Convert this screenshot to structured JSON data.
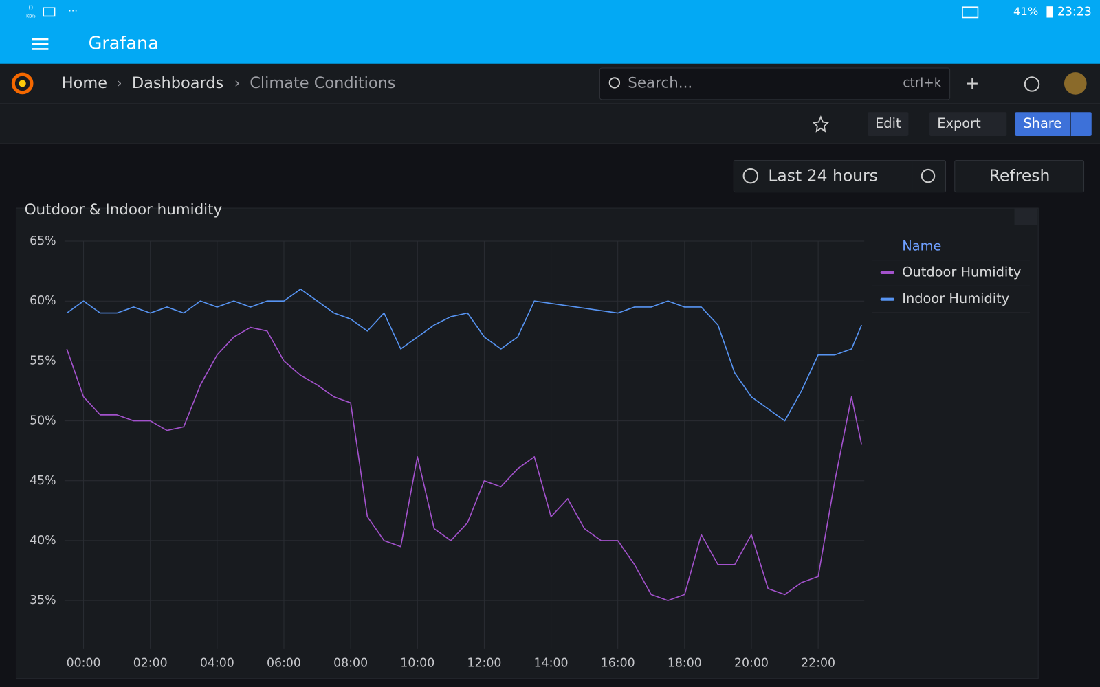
{
  "status": {
    "kbs": "0",
    "kbs_unit": "KB/s",
    "battery": "41%",
    "time": "23:23"
  },
  "app_bar": {
    "title": "Grafana"
  },
  "breadcrumb": [
    "Home",
    "Dashboards",
    "Climate Conditions"
  ],
  "search": {
    "placeholder": "Search...",
    "shortcut": "ctrl+k"
  },
  "toolbar": {
    "edit": "Edit",
    "export": "Export",
    "share": "Share"
  },
  "time_picker": {
    "range": "Last 24 hours",
    "refresh": "Refresh"
  },
  "chart_data": {
    "type": "line",
    "title": "Outdoor & Indoor humidity",
    "legend_header": "Name",
    "legend": "right",
    "grid": true,
    "x": [
      -0.5,
      0,
      0.5,
      1,
      1.5,
      2,
      2.5,
      3,
      3.5,
      4,
      4.5,
      5,
      5.5,
      6,
      6.5,
      7,
      7.5,
      8,
      8.5,
      9,
      9.5,
      10,
      10.5,
      11,
      11.5,
      12,
      12.5,
      13,
      13.5,
      14,
      14.5,
      15,
      15.5,
      16,
      16.5,
      17,
      17.5,
      18,
      18.5,
      19,
      19.5,
      20,
      20.5,
      21,
      21.5,
      22,
      22.5,
      23,
      23.3
    ],
    "xlim": [
      -0.57,
      23.38
    ],
    "xticks": [
      {
        "value": 0,
        "label": "00:00"
      },
      {
        "value": 2,
        "label": "02:00"
      },
      {
        "value": 4,
        "label": "04:00"
      },
      {
        "value": 6,
        "label": "06:00"
      },
      {
        "value": 8,
        "label": "08:00"
      },
      {
        "value": 10,
        "label": "10:00"
      },
      {
        "value": 12,
        "label": "12:00"
      },
      {
        "value": 14,
        "label": "14:00"
      },
      {
        "value": 16,
        "label": "16:00"
      },
      {
        "value": 18,
        "label": "18:00"
      },
      {
        "value": 20,
        "label": "20:00"
      },
      {
        "value": 22,
        "label": "22:00"
      }
    ],
    "ylim": [
      31,
      65
    ],
    "yticks": [
      {
        "value": 35,
        "label": "35%"
      },
      {
        "value": 40,
        "label": "40%"
      },
      {
        "value": 45,
        "label": "45%"
      },
      {
        "value": 50,
        "label": "50%"
      },
      {
        "value": 55,
        "label": "55%"
      },
      {
        "value": 60,
        "label": "60%"
      },
      {
        "value": 65,
        "label": "65%"
      }
    ],
    "series": [
      {
        "name": "Outdoor Humidity",
        "color": "#a352cc",
        "values": [
          56,
          52,
          50.5,
          50.5,
          50,
          50,
          49.2,
          49.5,
          53,
          55.5,
          57,
          57.8,
          57.5,
          55,
          53.8,
          53,
          52,
          51.5,
          42,
          40,
          39.5,
          47,
          41,
          40,
          41.5,
          45,
          44.5,
          46,
          47,
          42,
          43.5,
          41,
          40,
          40,
          38,
          35.5,
          35,
          35.5,
          40.5,
          38,
          38,
          40.5,
          36,
          35.5,
          36.5,
          37,
          45,
          52,
          48
        ]
      },
      {
        "name": "Indoor Humidity",
        "color": "#5794f2",
        "values": [
          59,
          60,
          59,
          59,
          59.5,
          59,
          59.5,
          59,
          60,
          59.5,
          60,
          59.5,
          60,
          60,
          61,
          60,
          59,
          58.5,
          57.5,
          59,
          56,
          57,
          58,
          58.7,
          59,
          57,
          56,
          57,
          60,
          59.8,
          59.6,
          59.4,
          59.2,
          59,
          59.5,
          59.5,
          60,
          59.5,
          59.5,
          58,
          54,
          52,
          51,
          50,
          52.5,
          55.5,
          55.5,
          56,
          58
        ]
      }
    ]
  }
}
